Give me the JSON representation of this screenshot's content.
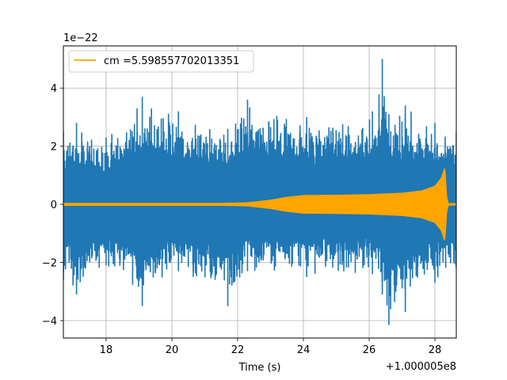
{
  "chart_data": {
    "type": "line",
    "title": "",
    "xlabel": "Time (s)",
    "ylabel": "",
    "xlim": [
      16.7,
      28.65
    ],
    "ylim": [
      -4.6,
      5.45
    ],
    "x_ticks": [
      18,
      20,
      22,
      24,
      26,
      28
    ],
    "x_tick_labels": [
      "18",
      "20",
      "22",
      "24",
      "26",
      "28"
    ],
    "y_ticks": [
      -4,
      -2,
      0,
      2,
      4
    ],
    "y_tick_labels": [
      "−4",
      "−2",
      "0",
      "2",
      "4"
    ],
    "x_offset_text": "+1.000005e8",
    "y_offset_text": "1e−22",
    "grid": true,
    "legend_position": "top-left",
    "series": [
      {
        "color": "#1f77b4",
        "kind": "noise",
        "envelope": [
          {
            "x": 16.7,
            "min": -2.6,
            "max": 2.5
          },
          {
            "x": 17.1,
            "min": -3.1,
            "max": 2.8
          },
          {
            "x": 18.0,
            "min": -2.1,
            "max": 2.3
          },
          {
            "x": 19.1,
            "min": -3.5,
            "max": 3.7
          },
          {
            "x": 20.2,
            "min": -2.3,
            "max": 3.2
          },
          {
            "x": 21.7,
            "min": -3.5,
            "max": 2.6
          },
          {
            "x": 22.3,
            "min": -2.3,
            "max": 3.6
          },
          {
            "x": 24.1,
            "min": -2.5,
            "max": 3.0
          },
          {
            "x": 26.1,
            "min": -2.4,
            "max": 3.2
          },
          {
            "x": 26.4,
            "min": -3.1,
            "max": 5.0
          },
          {
            "x": 26.6,
            "min": -4.15,
            "max": 3.1
          },
          {
            "x": 27.1,
            "min": -3.7,
            "max": 3.4
          },
          {
            "x": 28.0,
            "min": -2.7,
            "max": 2.8
          },
          {
            "x": 28.65,
            "min": -2.2,
            "max": 2.5
          }
        ]
      },
      {
        "name": "cm =5.598557702013351",
        "color": "#ffa500",
        "kind": "chirp",
        "envelope": [
          {
            "x": 16.7,
            "amp": 0.03
          },
          {
            "x": 21.5,
            "amp": 0.03
          },
          {
            "x": 22.3,
            "amp": 0.05
          },
          {
            "x": 23.0,
            "amp": 0.14
          },
          {
            "x": 23.5,
            "amp": 0.24
          },
          {
            "x": 24.0,
            "amp": 0.3
          },
          {
            "x": 25.0,
            "amp": 0.31
          },
          {
            "x": 26.0,
            "amp": 0.33
          },
          {
            "x": 27.0,
            "amp": 0.38
          },
          {
            "x": 27.6,
            "amp": 0.46
          },
          {
            "x": 28.0,
            "amp": 0.62
          },
          {
            "x": 28.2,
            "amp": 0.9
          },
          {
            "x": 28.3,
            "amp": 1.25
          },
          {
            "x": 28.35,
            "amp": 0.3
          },
          {
            "x": 28.4,
            "amp": 0.02
          },
          {
            "x": 28.65,
            "amp": 0.02
          }
        ],
        "spikes": [
          {
            "x": 28.4,
            "min": -0.08,
            "max": 0.0
          },
          {
            "x": 28.5,
            "min": -0.03,
            "max": 0.0
          }
        ]
      }
    ]
  }
}
